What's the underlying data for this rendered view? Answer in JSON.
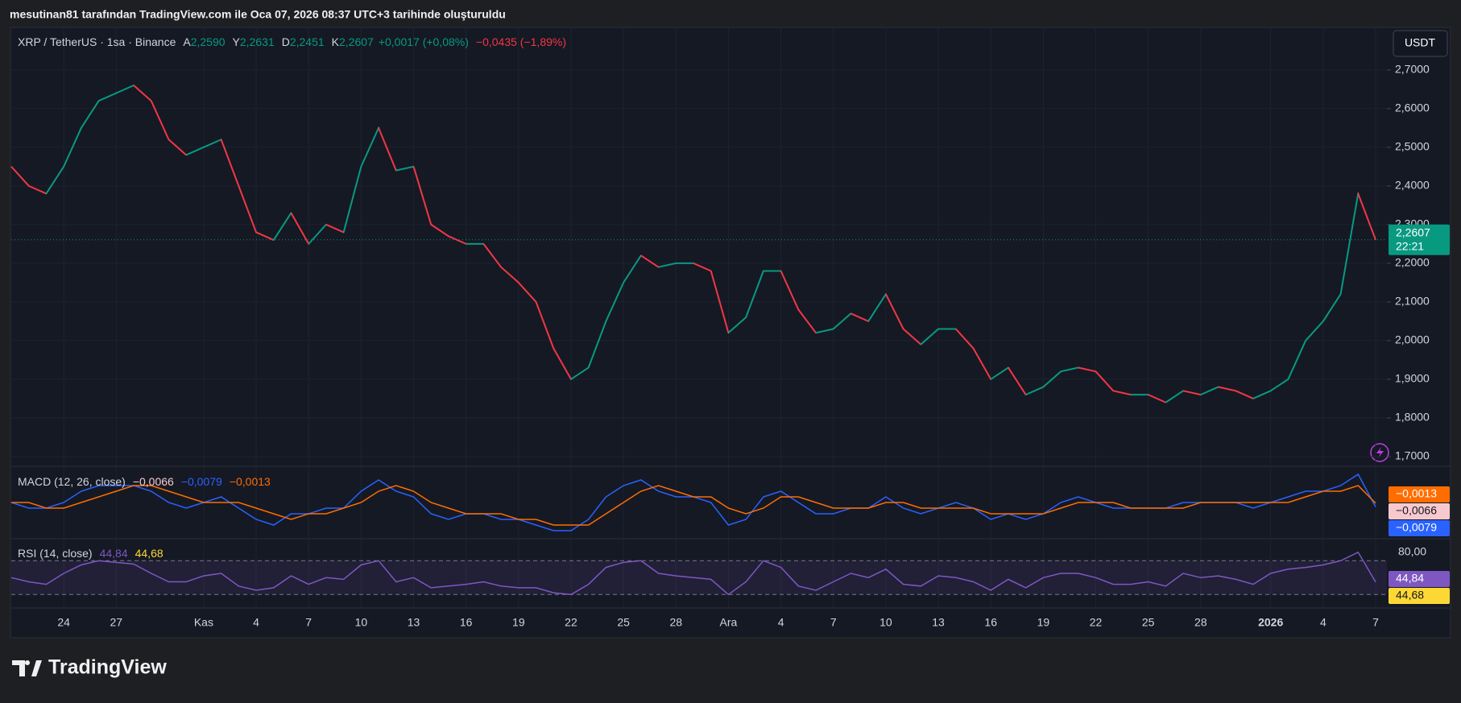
{
  "header": {
    "caption": "mesutinan81 tarafından TradingView.com ile Oca 07, 2026 08:37 UTC+3 tarihinde oluşturuldu"
  },
  "chart_data": [
    {
      "type": "line",
      "title": "XRP / TetherUS · 1sa · Binance",
      "ohlc": [
        {
          "key": "A",
          "value": "2,2590"
        },
        {
          "key": "Y",
          "value": "2,2631"
        },
        {
          "key": "D",
          "value": "2,2451"
        },
        {
          "key": "K",
          "value": "2,2607"
        }
      ],
      "change": "+0,0017 (+0,08%)",
      "change_day": "−0,0435 (−1,89%)",
      "currency": "USDT",
      "categories": [
        null,
        null,
        null,
        "24",
        null,
        null,
        "27",
        null,
        null,
        null,
        null,
        "Kas",
        null,
        null,
        "4",
        null,
        null,
        "7",
        null,
        null,
        "10",
        null,
        null,
        "13",
        null,
        null,
        "16",
        null,
        null,
        "19",
        null,
        null,
        "22",
        null,
        null,
        "25",
        null,
        null,
        "28",
        null,
        null,
        "Ara",
        null,
        null,
        "4",
        null,
        null,
        "7",
        null,
        null,
        "10",
        null,
        null,
        "13",
        null,
        null,
        "16",
        null,
        null,
        "19",
        null,
        null,
        "22",
        null,
        null,
        "25",
        null,
        null,
        "28",
        null,
        null,
        null,
        "2026",
        null,
        null,
        "4",
        null,
        null,
        "7"
      ],
      "values": [
        2.45,
        2.4,
        2.38,
        2.45,
        2.55,
        2.62,
        2.64,
        2.66,
        2.62,
        2.52,
        2.48,
        2.5,
        2.52,
        2.4,
        2.28,
        2.26,
        2.33,
        2.25,
        2.3,
        2.28,
        2.45,
        2.55,
        2.44,
        2.45,
        2.3,
        2.27,
        2.25,
        2.25,
        2.19,
        2.15,
        2.1,
        1.98,
        1.9,
        1.93,
        2.05,
        2.15,
        2.22,
        2.19,
        2.2,
        2.2,
        2.18,
        2.02,
        2.06,
        2.18,
        2.18,
        2.08,
        2.02,
        2.03,
        2.07,
        2.05,
        2.12,
        2.03,
        1.99,
        2.03,
        2.03,
        1.98,
        1.9,
        1.93,
        1.86,
        1.88,
        1.92,
        1.93,
        1.92,
        1.87,
        1.86,
        1.86,
        1.84,
        1.87,
        1.86,
        1.88,
        1.87,
        1.85,
        1.87,
        1.9,
        2.0,
        2.05,
        2.12,
        2.38,
        2.2607
      ],
      "color": "#c9ccd4",
      "ylim": [
        1.677,
        2.81
      ],
      "yticks": [
        {
          "value": 1.7,
          "label": "1,7000"
        },
        {
          "value": 1.8,
          "label": "1,8000"
        },
        {
          "value": 1.9,
          "label": "1,9000"
        },
        {
          "value": 2.0,
          "label": "2,0000"
        },
        {
          "value": 2.1,
          "label": "2,1000"
        },
        {
          "value": 2.2,
          "label": "2,2000"
        },
        {
          "value": 2.3,
          "label": "2,3000"
        },
        {
          "value": 2.4,
          "label": "2,4000"
        },
        {
          "value": 2.5,
          "label": "2,5000"
        },
        {
          "value": 2.6,
          "label": "2,6000"
        },
        {
          "value": 2.7,
          "label": "2,7000"
        }
      ],
      "last_price": {
        "value": 2.2607,
        "label": "2,2607"
      },
      "countdown": "22:21",
      "up_color": "#089981",
      "down_color": "#f23645",
      "grid": true
    },
    {
      "type": "line",
      "title": "MACD (12, 26, close)",
      "legend": [
        {
          "value": -0.0066,
          "label": "−0,0066",
          "color": "#f7c9cf"
        },
        {
          "value": -0.0079,
          "label": "−0,0079",
          "color": "#2962ff"
        },
        {
          "value": -0.0013,
          "label": "−0,0013",
          "color": "#ff6d00"
        }
      ],
      "series": [
        {
          "color": "#2962ff",
          "values": [
            0.0,
            -0.01,
            -0.01,
            0.0,
            0.02,
            0.03,
            0.03,
            0.03,
            0.02,
            0.0,
            -0.01,
            0.0,
            0.01,
            -0.01,
            -0.03,
            -0.04,
            -0.02,
            -0.02,
            -0.01,
            -0.01,
            0.02,
            0.04,
            0.02,
            0.01,
            -0.02,
            -0.03,
            -0.02,
            -0.02,
            -0.03,
            -0.03,
            -0.04,
            -0.05,
            -0.05,
            -0.03,
            0.01,
            0.03,
            0.04,
            0.02,
            0.01,
            0.01,
            0.0,
            -0.04,
            -0.03,
            0.01,
            0.02,
            0.0,
            -0.02,
            -0.02,
            -0.01,
            -0.01,
            0.01,
            -0.01,
            -0.02,
            -0.01,
            0.0,
            -0.01,
            -0.03,
            -0.02,
            -0.03,
            -0.02,
            0.0,
            0.01,
            0.0,
            -0.01,
            -0.01,
            -0.01,
            -0.01,
            0.0,
            0.0,
            0.0,
            0.0,
            -0.01,
            0.0,
            0.01,
            0.02,
            0.02,
            0.03,
            0.05,
            -0.0079
          ]
        },
        {
          "color": "#ff6d00",
          "values": [
            0.0,
            0.0,
            -0.01,
            -0.01,
            0.0,
            0.01,
            0.02,
            0.03,
            0.03,
            0.02,
            0.01,
            0.0,
            0.0,
            0.0,
            -0.01,
            -0.02,
            -0.03,
            -0.02,
            -0.02,
            -0.01,
            0.0,
            0.02,
            0.03,
            0.02,
            0.0,
            -0.01,
            -0.02,
            -0.02,
            -0.02,
            -0.03,
            -0.03,
            -0.04,
            -0.04,
            -0.04,
            -0.02,
            0.0,
            0.02,
            0.03,
            0.02,
            0.01,
            0.01,
            -0.01,
            -0.02,
            -0.01,
            0.01,
            0.01,
            0.0,
            -0.01,
            -0.01,
            -0.01,
            0.0,
            0.0,
            -0.01,
            -0.01,
            -0.01,
            -0.01,
            -0.02,
            -0.02,
            -0.02,
            -0.02,
            -0.01,
            0.0,
            0.0,
            0.0,
            -0.01,
            -0.01,
            -0.01,
            -0.01,
            0.0,
            0.0,
            0.0,
            0.0,
            0.0,
            0.0,
            0.01,
            0.02,
            0.02,
            0.03,
            -0.0013
          ]
        }
      ],
      "ylim": [
        -0.06,
        0.06
      ]
    },
    {
      "type": "line",
      "title": "RSI (14, close)",
      "legend": [
        {
          "value": 44.84,
          "label": "44,84",
          "color": "#7e57c2"
        },
        {
          "value": 44.68,
          "label": "44,68",
          "color": "#fdd835"
        }
      ],
      "series": [
        {
          "color": "#7e57c2",
          "values": [
            50,
            45,
            42,
            55,
            65,
            70,
            68,
            66,
            55,
            45,
            45,
            52,
            55,
            40,
            35,
            38,
            52,
            42,
            50,
            48,
            65,
            70,
            45,
            50,
            38,
            40,
            42,
            45,
            40,
            38,
            38,
            32,
            30,
            42,
            62,
            68,
            70,
            55,
            52,
            50,
            48,
            30,
            45,
            70,
            62,
            40,
            35,
            45,
            55,
            50,
            60,
            42,
            40,
            52,
            50,
            45,
            35,
            48,
            38,
            50,
            55,
            55,
            50,
            42,
            42,
            45,
            40,
            55,
            50,
            52,
            48,
            42,
            55,
            60,
            62,
            65,
            70,
            80,
            44.84
          ]
        }
      ],
      "bands": [
        70,
        30
      ],
      "ylim": [
        15,
        95
      ],
      "yticks": [
        {
          "value": 80,
          "label": "80,00"
        }
      ]
    }
  ],
  "footer": {
    "brand": "TradingView"
  }
}
